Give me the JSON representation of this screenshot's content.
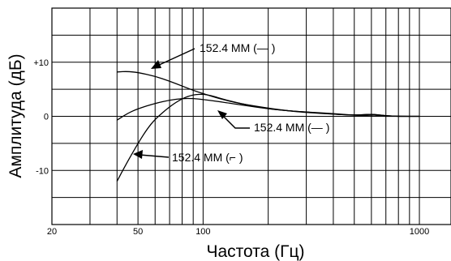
{
  "chart_data": {
    "type": "line",
    "xlabel": "Частота (Гц)",
    "ylabel": "Амплитуда (дБ)",
    "x_scale": "log",
    "xlim": [
      20,
      1400
    ],
    "ylim": [
      -20,
      20
    ],
    "grid": true,
    "x_ticks": [
      {
        "value": 20,
        "label": "20"
      },
      {
        "value": 50,
        "label": "50"
      },
      {
        "value": 100,
        "label": "100"
      },
      {
        "value": 1000,
        "label": "1000"
      }
    ],
    "y_ticks": [
      {
        "value": 10,
        "label": "+10"
      },
      {
        "value": 0,
        "label": "0"
      },
      {
        "value": -10,
        "label": "-10"
      }
    ],
    "series": [
      {
        "x": [
          40,
          45,
          50,
          60,
          70,
          80,
          90,
          100,
          120,
          150,
          200,
          250,
          300,
          400,
          500,
          600,
          700,
          800,
          1000
        ],
        "y": [
          8.2,
          8.3,
          8.1,
          7.4,
          6.5,
          5.6,
          4.8,
          4.2,
          3.2,
          2.3,
          1.5,
          1.0,
          0.7,
          0.4,
          0.2,
          0.1,
          0.0,
          0.0,
          0.0
        ]
      },
      {
        "x": [
          40,
          45,
          50,
          60,
          70,
          80,
          90,
          100,
          120,
          150,
          200,
          250,
          300,
          400,
          500,
          600,
          700,
          800,
          1000
        ],
        "y": [
          -0.7,
          0.6,
          1.4,
          2.4,
          3.0,
          3.3,
          3.3,
          3.1,
          2.7,
          2.1,
          1.4,
          1.0,
          0.8,
          0.5,
          0.2,
          0.4,
          0.1,
          0.0,
          0.0
        ]
      },
      {
        "x": [
          40,
          42,
          45,
          50,
          55,
          60,
          70,
          80,
          90,
          100,
          110,
          120,
          150,
          200,
          250,
          300,
          400,
          500,
          600,
          700,
          800,
          1000
        ],
        "y": [
          -12,
          -10.4,
          -8.2,
          -5.0,
          -2.4,
          -0.5,
          1.8,
          3.3,
          4.0,
          4.1,
          3.8,
          3.3,
          2.3,
          1.4,
          1.0,
          0.8,
          0.4,
          0.2,
          0.4,
          0.1,
          0.0,
          0.0
        ]
      }
    ],
    "annotations": [
      {
        "text": "152.4 ММ (— )",
        "series_index": 0
      },
      {
        "text": "152.4 ММ (— )",
        "series_index": 1
      },
      {
        "text": "152.4 ММ (⌐ )",
        "series_index": 2
      }
    ]
  }
}
